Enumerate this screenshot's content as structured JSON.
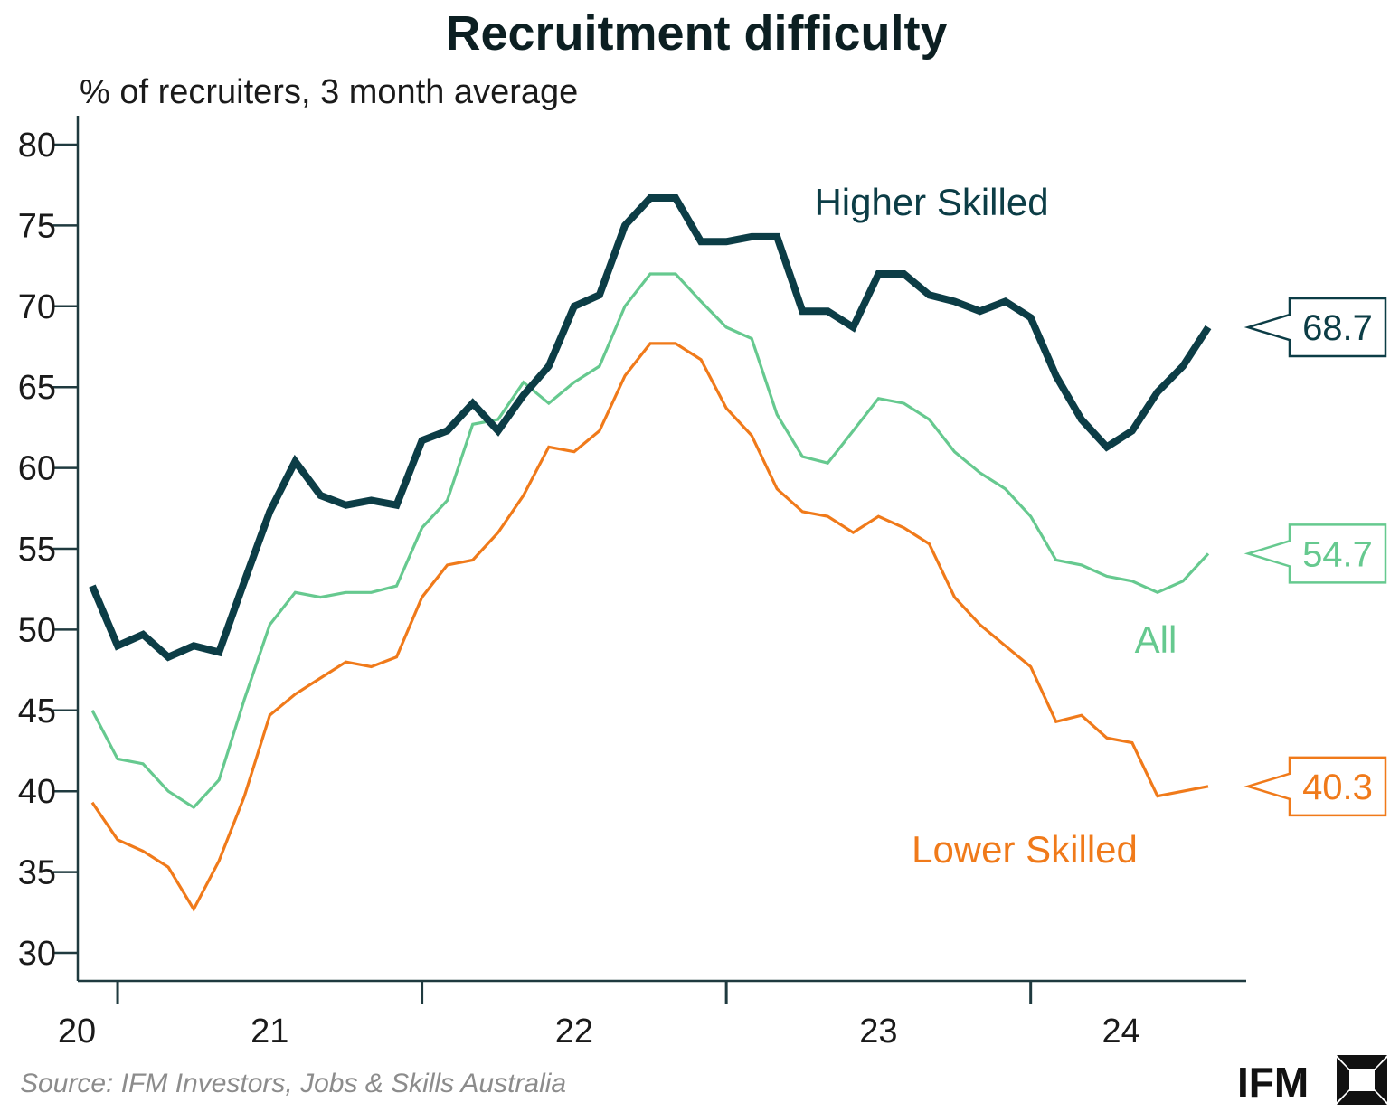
{
  "chart_data": {
    "type": "line",
    "title": "Recruitment difficulty",
    "subtitle": "% of recruiters, 3 month average",
    "xlabel": "",
    "ylabel": "% of recruiters, 3 month average",
    "ylim": [
      30,
      80
    ],
    "yticks": [
      30,
      35,
      40,
      45,
      50,
      55,
      60,
      65,
      70,
      75,
      80
    ],
    "x_period_labels": [
      "20",
      "21",
      "22",
      "23",
      "24"
    ],
    "x_start_year_fraction": 2019.92,
    "x_step_months": 1,
    "grid": false,
    "series": [
      {
        "name": "Higher Skilled",
        "color": "#0c3d46",
        "end_label": "68.7",
        "values": [
          52.7,
          49.0,
          49.7,
          48.3,
          49.0,
          48.6,
          53.0,
          57.3,
          60.4,
          58.3,
          57.7,
          58.0,
          57.7,
          61.7,
          62.3,
          64.0,
          62.3,
          64.5,
          66.3,
          70.0,
          70.7,
          75.0,
          76.7,
          76.7,
          74.0,
          74.0,
          74.3,
          74.3,
          69.7,
          69.7,
          68.7,
          72.0,
          72.0,
          70.7,
          70.3,
          69.7,
          70.3,
          69.3,
          65.7,
          63.0,
          61.3,
          62.3,
          64.7,
          66.3,
          68.7
        ]
      },
      {
        "name": "All",
        "color": "#66c98f",
        "end_label": "54.7",
        "values": [
          45.0,
          42.0,
          41.7,
          40.0,
          39.0,
          40.7,
          45.7,
          50.3,
          52.3,
          52.0,
          52.3,
          52.3,
          52.7,
          56.3,
          58.0,
          62.7,
          63.0,
          65.3,
          64.0,
          65.3,
          66.3,
          70.0,
          72.0,
          72.0,
          70.3,
          68.7,
          68.0,
          63.3,
          60.7,
          60.3,
          62.3,
          64.3,
          64.0,
          63.0,
          61.0,
          59.7,
          58.7,
          57.0,
          54.3,
          54.0,
          53.3,
          53.0,
          52.3,
          53.0,
          54.7
        ]
      },
      {
        "name": "Lower Skilled",
        "color": "#f07a1a",
        "end_label": "40.3",
        "values": [
          39.3,
          37.0,
          36.3,
          35.3,
          32.7,
          35.7,
          39.7,
          44.7,
          46.0,
          47.0,
          48.0,
          47.7,
          48.3,
          52.0,
          54.0,
          54.3,
          56.0,
          58.3,
          61.3,
          61.0,
          62.3,
          65.7,
          67.7,
          67.7,
          66.7,
          63.7,
          62.0,
          58.7,
          57.3,
          57.0,
          56.0,
          57.0,
          56.3,
          55.3,
          52.0,
          50.3,
          49.0,
          47.7,
          44.3,
          44.7,
          43.3,
          43.0,
          39.7,
          40.0,
          40.3
        ]
      }
    ]
  },
  "source": "Source: IFM Investors, Jobs & Skills Australia",
  "logo": "IFM"
}
